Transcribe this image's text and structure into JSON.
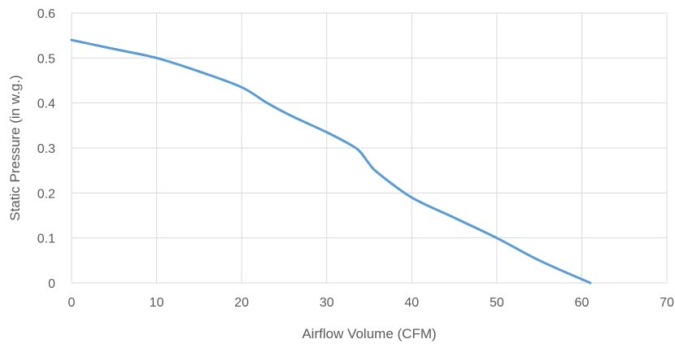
{
  "chart_data": {
    "type": "line",
    "title": "",
    "xlabel": "Airflow Volume (CFM)",
    "ylabel": "Static Pressure (in w.g.)",
    "xlim": [
      0,
      70
    ],
    "ylim": [
      0,
      0.6
    ],
    "x_ticks": [
      0,
      10,
      20,
      30,
      40,
      50,
      60,
      70
    ],
    "x_tick_labels": [
      "0",
      "10",
      "20",
      "30",
      "40",
      "50",
      "60",
      "70"
    ],
    "y_ticks": [
      0,
      0.1,
      0.2,
      0.3,
      0.4,
      0.5,
      0.6
    ],
    "y_tick_labels": [
      "0",
      "0.1",
      "0.2",
      "0.3",
      "0.4",
      "0.5",
      "0.6"
    ],
    "grid": true,
    "legend": "none",
    "colors": {
      "series": "#5b9bd5",
      "grid": "#d9d9d9",
      "text": "#595959"
    },
    "series": [
      {
        "x": [
          0,
          5,
          10,
          15,
          20,
          23,
          26,
          30,
          33,
          34,
          35,
          36,
          40,
          45,
          50,
          55,
          61
        ],
        "values": [
          0.54,
          0.52,
          0.5,
          0.47,
          0.435,
          0.4,
          0.37,
          0.335,
          0.305,
          0.29,
          0.265,
          0.245,
          0.19,
          0.145,
          0.1,
          0.05,
          0.0
        ]
      }
    ]
  }
}
